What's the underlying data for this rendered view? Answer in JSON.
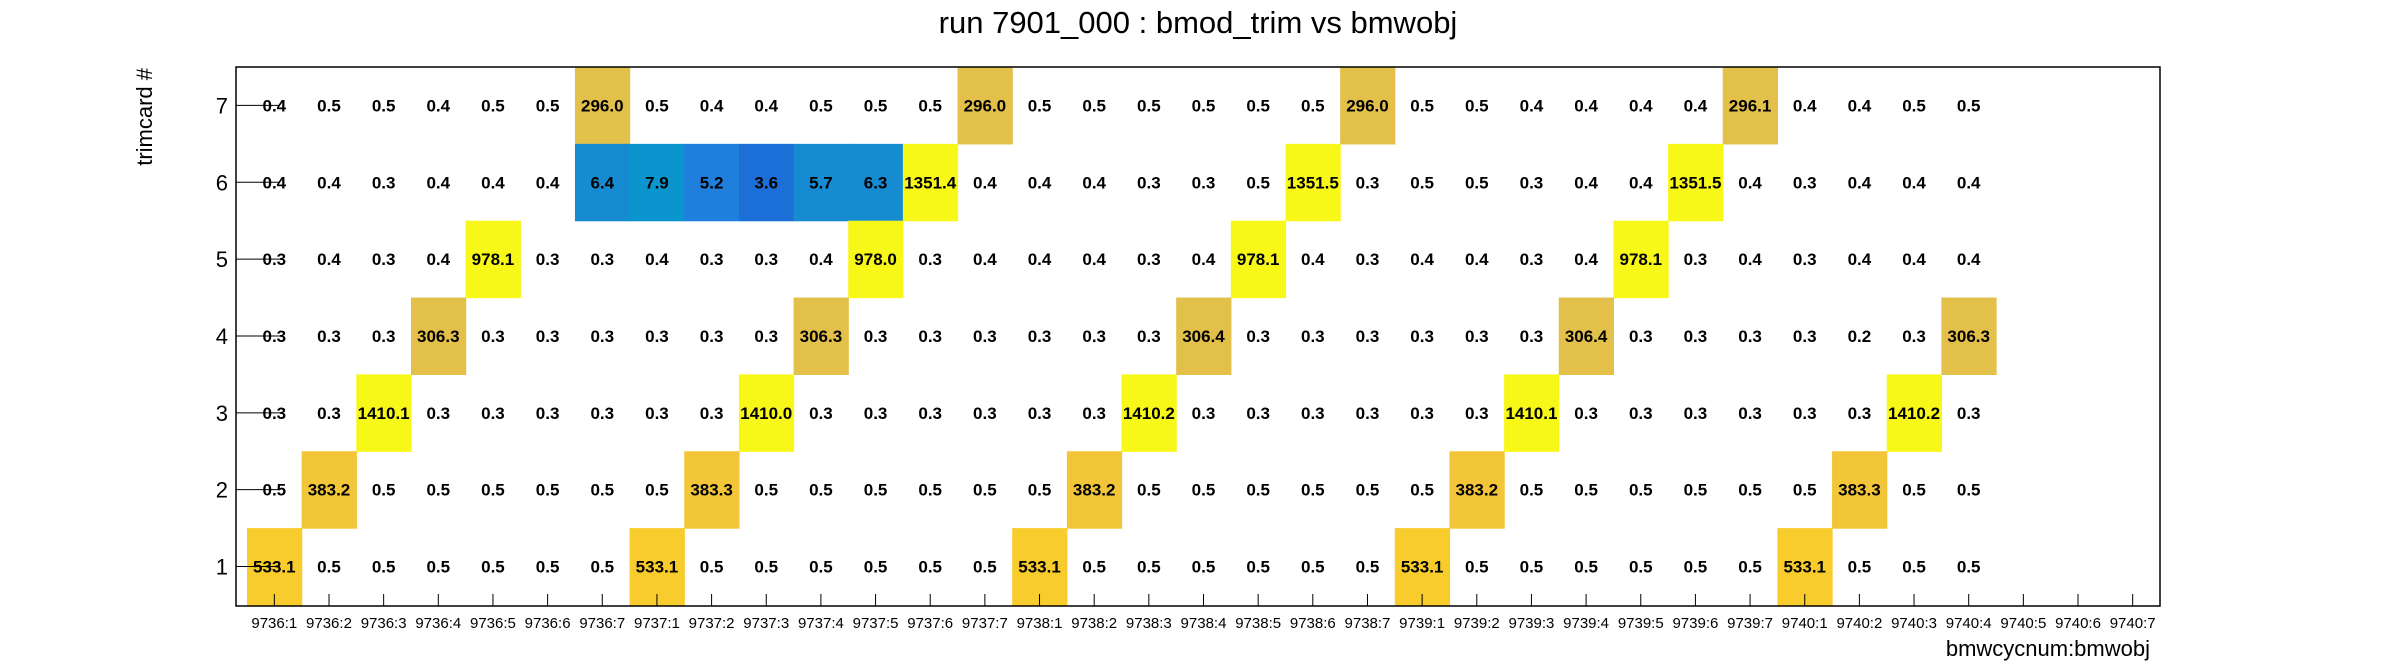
{
  "chart_data": {
    "type": "heatmap",
    "title": "run 7901_000 : bmod_trim vs bmwobj",
    "xlabel": "bmwcycnum:bmwobj",
    "ylabel": "trimcard #",
    "x_categories": [
      "9736:1",
      "9736:2",
      "9736:3",
      "9736:4",
      "9736:5",
      "9736:6",
      "9736:7",
      "9737:1",
      "9737:2",
      "9737:3",
      "9737:4",
      "9737:5",
      "9737:6",
      "9737:7",
      "9738:1",
      "9738:2",
      "9738:3",
      "9738:4",
      "9738:5",
      "9738:6",
      "9738:7",
      "9739:1",
      "9739:2",
      "9739:3",
      "9739:4",
      "9739:5",
      "9739:6",
      "9739:7",
      "9740:1",
      "9740:2",
      "9740:3",
      "9740:4",
      "9740:5",
      "9740:6",
      "9740:7"
    ],
    "y_categories": [
      "1",
      "2",
      "3",
      "4",
      "5",
      "6",
      "7"
    ],
    "rows": [
      {
        "y": "7",
        "values": [
          0.4,
          0.5,
          0.5,
          0.4,
          0.5,
          0.5,
          296.0,
          0.5,
          0.4,
          0.4,
          0.5,
          0.5,
          0.5,
          296.0,
          0.5,
          0.5,
          0.5,
          0.5,
          0.5,
          0.5,
          296.0,
          0.5,
          0.5,
          0.4,
          0.4,
          0.4,
          0.4,
          296.1,
          0.4,
          0.4,
          0.5,
          0.5,
          null,
          null,
          null
        ]
      },
      {
        "y": "6",
        "values": [
          0.4,
          0.4,
          0.3,
          0.4,
          0.4,
          0.4,
          6.4,
          7.9,
          5.2,
          3.6,
          5.7,
          6.3,
          1351.4,
          0.4,
          0.4,
          0.4,
          0.3,
          0.3,
          0.5,
          1351.5,
          0.3,
          0.5,
          0.5,
          0.3,
          0.4,
          0.4,
          1351.5,
          0.4,
          0.3,
          0.4,
          0.4,
          0.4,
          null,
          null,
          null
        ]
      },
      {
        "y": "5",
        "values": [
          0.3,
          0.4,
          0.3,
          0.4,
          978.1,
          0.3,
          0.3,
          0.4,
          0.3,
          0.3,
          0.4,
          978.0,
          0.3,
          0.4,
          0.4,
          0.4,
          0.3,
          0.4,
          978.1,
          0.4,
          0.3,
          0.4,
          0.4,
          0.3,
          0.4,
          978.1,
          0.3,
          0.4,
          0.3,
          0.4,
          0.4,
          0.4,
          null,
          null,
          null
        ]
      },
      {
        "y": "4",
        "values": [
          0.3,
          0.3,
          0.3,
          306.3,
          0.3,
          0.3,
          0.3,
          0.3,
          0.3,
          0.3,
          306.3,
          0.3,
          0.3,
          0.3,
          0.3,
          0.3,
          0.3,
          306.4,
          0.3,
          0.3,
          0.3,
          0.3,
          0.3,
          0.3,
          306.4,
          0.3,
          0.3,
          0.3,
          0.3,
          0.2,
          0.3,
          306.3,
          null,
          null,
          null
        ]
      },
      {
        "y": "3",
        "values": [
          0.3,
          0.3,
          1410.1,
          0.3,
          0.3,
          0.3,
          0.3,
          0.3,
          0.3,
          1410.0,
          0.3,
          0.3,
          0.3,
          0.3,
          0.3,
          0.3,
          1410.2,
          0.3,
          0.3,
          0.3,
          0.3,
          0.3,
          0.3,
          1410.1,
          0.3,
          0.3,
          0.3,
          0.3,
          0.3,
          0.3,
          1410.2,
          0.3,
          null,
          null,
          null
        ]
      },
      {
        "y": "2",
        "values": [
          0.5,
          383.2,
          0.5,
          0.5,
          0.5,
          0.5,
          0.5,
          0.5,
          383.3,
          0.5,
          0.5,
          0.5,
          0.5,
          0.5,
          0.5,
          383.2,
          0.5,
          0.5,
          0.5,
          0.5,
          0.5,
          0.5,
          383.2,
          0.5,
          0.5,
          0.5,
          0.5,
          0.5,
          0.5,
          383.3,
          0.5,
          0.5,
          null,
          null,
          null
        ]
      },
      {
        "y": "1",
        "values": [
          533.1,
          0.5,
          0.5,
          0.5,
          0.5,
          0.5,
          0.5,
          533.1,
          0.5,
          0.5,
          0.5,
          0.5,
          0.5,
          0.5,
          533.1,
          0.5,
          0.5,
          0.5,
          0.5,
          0.5,
          0.5,
          533.1,
          0.5,
          0.5,
          0.5,
          0.5,
          0.5,
          0.5,
          533.1,
          0.5,
          0.5,
          0.5,
          null,
          null,
          null
        ]
      }
    ],
    "color_scale": [
      {
        "max": 4,
        "color": "#1b6fd6"
      },
      {
        "max": 5.5,
        "color": "#1f7fdd"
      },
      {
        "max": 7,
        "color": "#168bd2"
      },
      {
        "max": 10,
        "color": "#0a95cf"
      },
      {
        "max": 320,
        "color": "#e3c04a"
      },
      {
        "max": 420,
        "color": "#f2c638"
      },
      {
        "max": 600,
        "color": "#f8cc2c"
      },
      {
        "max": 1500,
        "color": "#f8f818"
      }
    ],
    "color_threshold": 1,
    "grid": false,
    "legend": "none"
  }
}
